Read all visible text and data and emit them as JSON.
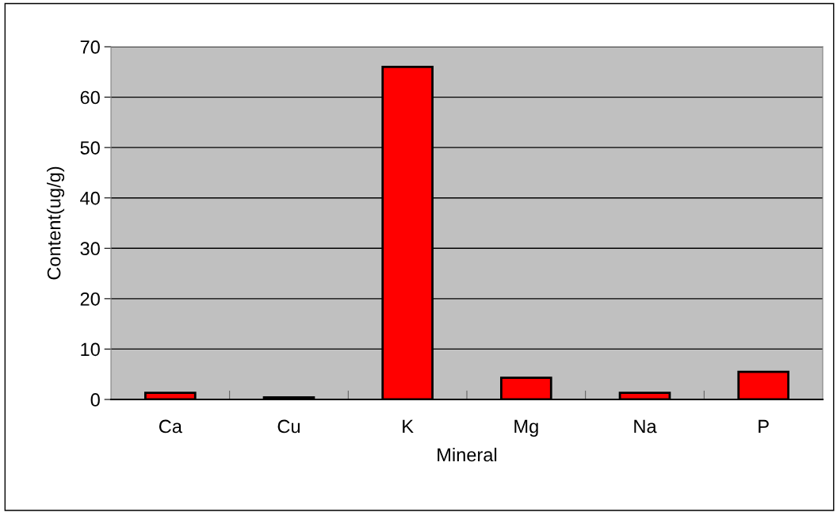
{
  "chart_data": {
    "type": "bar",
    "xlabel": "Mineral",
    "ylabel": "Content(ug/g)",
    "categories": [
      "Ca",
      "Cu",
      "K",
      "Mg",
      "Na",
      "P"
    ],
    "values": [
      1.3,
      0.4,
      66.0,
      4.3,
      1.3,
      5.5
    ],
    "color": "#ff0000",
    "ylim": [
      0,
      70
    ],
    "yticks": [
      0,
      10,
      20,
      30,
      40,
      50,
      60,
      70
    ],
    "grid": "y"
  }
}
